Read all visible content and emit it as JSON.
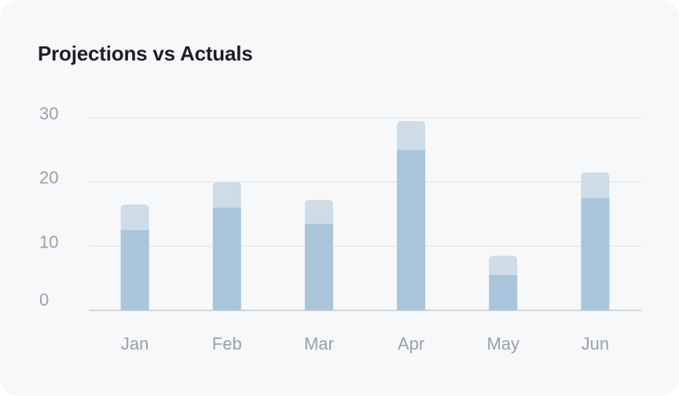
{
  "card": {
    "title": "Projections vs Actuals"
  },
  "colors": {
    "background": "#f7f8fa",
    "actual": "#a8c5da",
    "projection": "#cddcE7",
    "grid": "#e6e8eb",
    "axis": "#c4c8cc",
    "tick_text": "#9aa0a6",
    "title_text": "#1d1f24"
  },
  "chart_data": {
    "type": "bar",
    "title": "Projections vs Actuals",
    "categories": [
      "Jan",
      "Feb",
      "Mar",
      "Apr",
      "May",
      "Jun"
    ],
    "series": [
      {
        "values": [
          12.5,
          16,
          13.5,
          25,
          5.5,
          17.5
        ]
      },
      {
        "values": [
          16.5,
          20,
          17.2,
          29.5,
          8.5,
          21.5
        ]
      }
    ],
    "stacked_overlay": true,
    "ylim": [
      0,
      30
    ],
    "yticks": [
      0,
      10,
      20,
      30
    ],
    "grid": true,
    "legend": "none"
  }
}
